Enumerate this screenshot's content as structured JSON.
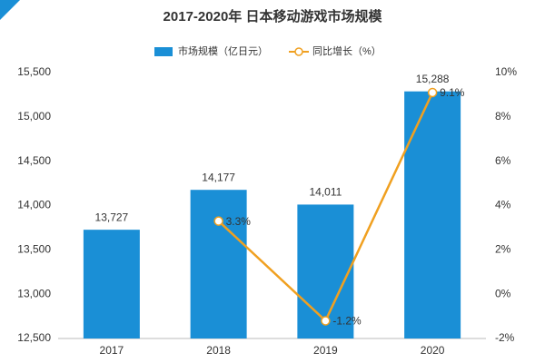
{
  "chart_data": {
    "type": "bar_line",
    "title": "2017-2020年 日本移动游戏市场规模",
    "categories": [
      "2017",
      "2018",
      "2019",
      "2020"
    ],
    "series": [
      {
        "name": "市场规模（亿日元）",
        "type": "bar",
        "color": "#1a8fd6",
        "values": [
          13727,
          14177,
          14011,
          15288
        ],
        "value_labels": [
          "13,727",
          "14,177",
          "14,011",
          "15,288"
        ]
      },
      {
        "name": "同比增长（%）",
        "type": "line",
        "axis": "y2",
        "color": "#f0a020",
        "values": [
          null,
          3.3,
          -1.2,
          9.1
        ],
        "value_labels": [
          null,
          "3.3%",
          "-1.2%",
          "9.1%"
        ]
      }
    ],
    "ylim": [
      12500,
      15500
    ],
    "yticks": [
      {
        "value": 12500,
        "label": "12,500"
      },
      {
        "value": 13000,
        "label": "13,000"
      },
      {
        "value": 13500,
        "label": "13,500"
      },
      {
        "value": 14000,
        "label": "14,000"
      },
      {
        "value": 14500,
        "label": "14,500"
      },
      {
        "value": 15000,
        "label": "15,000"
      },
      {
        "value": 15500,
        "label": "15,500"
      }
    ],
    "y2lim": [
      -2,
      10
    ],
    "y2ticks": [
      {
        "value": -2,
        "label": "-2%"
      },
      {
        "value": 0,
        "label": "0%"
      },
      {
        "value": 2,
        "label": "2%"
      },
      {
        "value": 4,
        "label": "4%"
      },
      {
        "value": 6,
        "label": "6%"
      },
      {
        "value": 8,
        "label": "8%"
      },
      {
        "value": 10,
        "label": "10%"
      }
    ],
    "legend": "top"
  }
}
